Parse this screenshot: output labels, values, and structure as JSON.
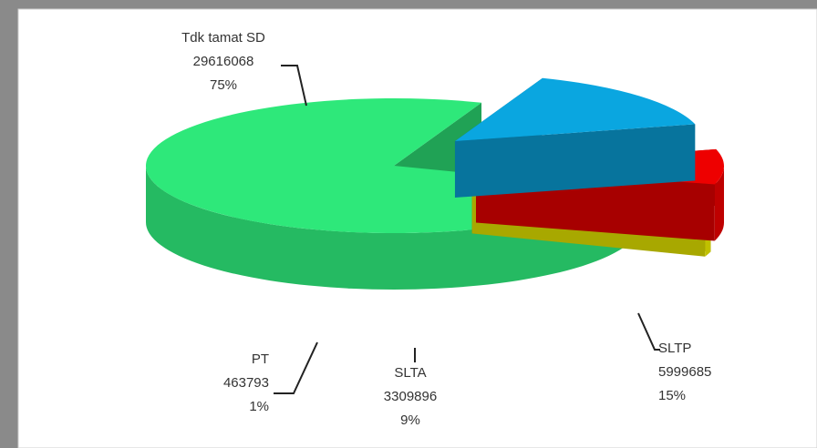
{
  "chart_data": {
    "type": "pie",
    "categories": [
      "Tdk tamat SD",
      "SLTP",
      "SLTA",
      "PT"
    ],
    "values": [
      29616068,
      5999685,
      3309896,
      463793
    ],
    "percent_labels": [
      "75%",
      "15%",
      "9%",
      "1%"
    ],
    "colors": [
      "#2ee87a",
      "#0aa6e0",
      "#ee0000",
      "#f0f000"
    ],
    "exploded": [
      false,
      true,
      true,
      true
    ],
    "three_d": true
  }
}
